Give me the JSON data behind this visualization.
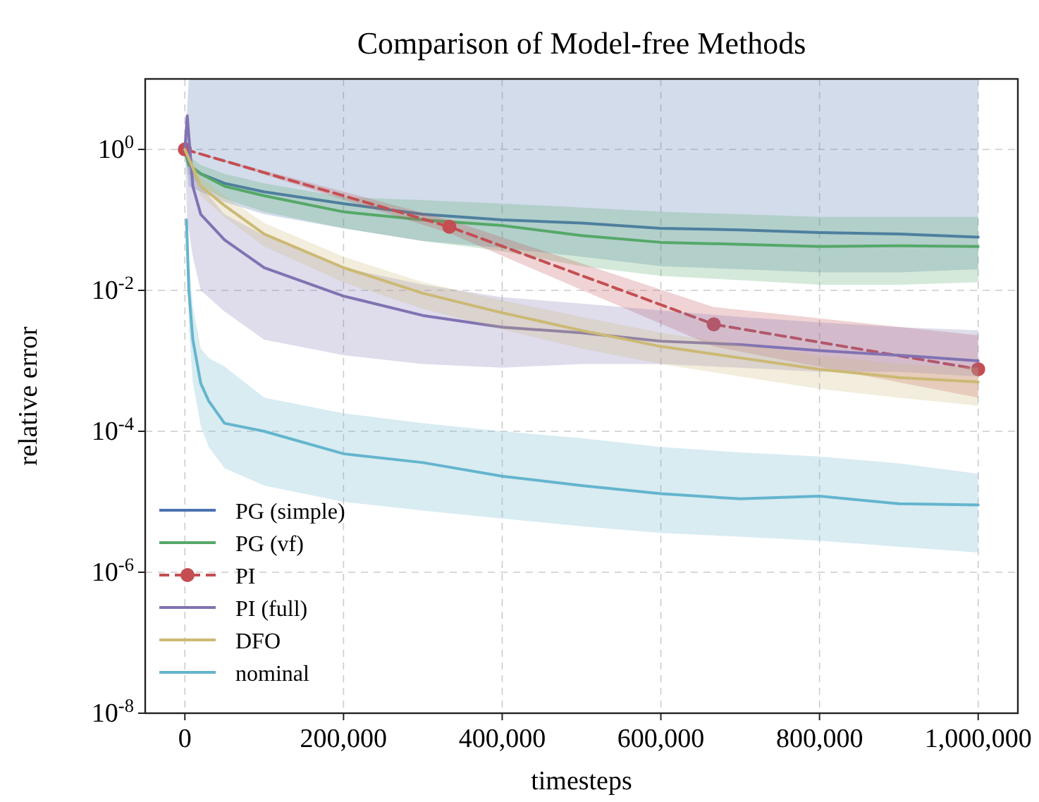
{
  "chart_data": {
    "type": "line",
    "title": "Comparison of Model-free Methods",
    "xlabel": "timesteps",
    "ylabel": "relative error",
    "log": "y",
    "grid": true,
    "legend": "bottom left",
    "xlim": [
      -50000,
      1050000
    ],
    "xticks": [
      {
        "value": 0,
        "label": "0"
      },
      {
        "value": 200000,
        "label": "200,000"
      },
      {
        "value": 400000,
        "label": "400,000"
      },
      {
        "value": 600000,
        "label": "600,000"
      },
      {
        "value": 800000,
        "label": "800,000"
      },
      {
        "value": 1000000,
        "label": "1,000,000"
      }
    ],
    "ylim": [
      1e-08,
      10
    ],
    "yticks": [
      {
        "value": 1e-08,
        "label": "10$^{-8}$"
      },
      {
        "value": 1e-06,
        "label": "10$^{-6}$"
      },
      {
        "value": 0.0001,
        "label": "10$^{-4}$"
      },
      {
        "value": 0.01,
        "label": "10$^{-2}$"
      },
      {
        "value": 1,
        "label": "10$^{0}$"
      }
    ],
    "series": [
      {
        "name": "PG (simple)",
        "color": "#4c72b0",
        "marker": "none",
        "line_style": "solid",
        "x": [
          0,
          5000,
          20000,
          50000,
          100000,
          200000,
          300000,
          400000,
          500000,
          600000,
          700000,
          800000,
          900000,
          1000000
        ],
        "values": [
          1,
          0.6,
          0.45,
          0.33,
          0.25,
          0.17,
          0.12,
          0.1,
          0.09,
          0.076,
          0.072,
          0.066,
          0.063,
          0.057
        ],
        "lower": [
          1,
          0.3,
          0.25,
          0.18,
          0.12,
          0.076,
          0.05,
          0.04,
          0.03,
          0.022,
          0.02,
          0.018,
          0.018,
          0.02
        ],
        "upper": [
          1,
          10,
          10,
          10,
          10,
          10,
          10,
          10,
          10,
          10,
          10,
          10,
          10,
          10
        ]
      },
      {
        "name": "PG (vf)",
        "color": "#55a868",
        "marker": "none",
        "line_style": "solid",
        "x": [
          0,
          5000,
          20000,
          50000,
          100000,
          200000,
          300000,
          400000,
          500000,
          600000,
          700000,
          800000,
          900000,
          1000000
        ],
        "values": [
          1,
          0.6,
          0.45,
          0.3,
          0.22,
          0.13,
          0.1,
          0.083,
          0.06,
          0.048,
          0.045,
          0.042,
          0.043,
          0.042
        ],
        "lower": [
          1,
          0.45,
          0.3,
          0.2,
          0.13,
          0.076,
          0.05,
          0.036,
          0.022,
          0.016,
          0.014,
          0.012,
          0.012,
          0.013
        ],
        "upper": [
          1,
          0.8,
          0.6,
          0.45,
          0.33,
          0.21,
          0.19,
          0.17,
          0.15,
          0.13,
          0.12,
          0.11,
          0.11,
          0.11
        ]
      },
      {
        "name": "PI",
        "color": "#c44e52",
        "marker": "circle",
        "line_style": "dashed",
        "x": [
          0,
          333333,
          666667,
          1000000
        ],
        "values": [
          1,
          0.08,
          0.0033,
          0.00076
        ],
        "lower": [
          1,
          0.065,
          0.0016,
          0.0003
        ],
        "upper": [
          1,
          0.1,
          0.0058,
          0.0023
        ]
      },
      {
        "name": "PI (full)",
        "color": "#8172b2",
        "marker": "none",
        "line_style": "solid",
        "x": [
          0,
          3000,
          10000,
          20000,
          50000,
          100000,
          200000,
          300000,
          400000,
          500000,
          600000,
          700000,
          800000,
          900000,
          1000000
        ],
        "values": [
          1,
          3,
          0.3,
          0.12,
          0.052,
          0.021,
          0.0083,
          0.0044,
          0.003,
          0.0025,
          0.0019,
          0.0017,
          0.0014,
          0.0012,
          0.001
        ],
        "lower": [
          1,
          0.1,
          0.03,
          0.01,
          0.005,
          0.002,
          0.0012,
          0.0009,
          0.0008,
          0.0009,
          0.0009,
          0.0008,
          0.0007,
          0.0007,
          0.0006
        ],
        "upper": [
          1,
          3,
          0.6,
          0.3,
          0.12,
          0.06,
          0.021,
          0.012,
          0.008,
          0.0065,
          0.0052,
          0.0042,
          0.0035,
          0.003,
          0.0027
        ]
      },
      {
        "name": "DFO",
        "color": "#ccb974",
        "marker": "none",
        "line_style": "solid",
        "x": [
          0,
          20000,
          50000,
          100000,
          200000,
          300000,
          400000,
          500000,
          600000,
          700000,
          800000,
          900000,
          1000000
        ],
        "values": [
          1,
          0.3,
          0.16,
          0.063,
          0.021,
          0.0091,
          0.0048,
          0.0027,
          0.0016,
          0.0011,
          0.00076,
          0.00058,
          0.0005
        ],
        "lower": [
          1,
          0.22,
          0.11,
          0.042,
          0.013,
          0.0055,
          0.0028,
          0.0015,
          0.0009,
          0.0006,
          0.0004,
          0.0003,
          0.00023
        ],
        "upper": [
          1,
          0.4,
          0.22,
          0.09,
          0.03,
          0.013,
          0.0072,
          0.0042,
          0.0025,
          0.0017,
          0.0012,
          0.0009,
          0.0008
        ]
      },
      {
        "name": "nominal",
        "color": "#64b5cd",
        "marker": "none",
        "line_style": "solid",
        "x": [
          2000,
          5000,
          10000,
          20000,
          30000,
          50000,
          100000,
          200000,
          300000,
          400000,
          500000,
          600000,
          700000,
          800000,
          900000,
          1000000
        ],
        "values": [
          0.1,
          0.01,
          0.002,
          0.00048,
          0.00027,
          0.00013,
          0.0001,
          4.8e-05,
          3.6e-05,
          2.3e-05,
          1.7e-05,
          1.3e-05,
          1.1e-05,
          1.2e-05,
          9.4e-06,
          9e-06
        ],
        "lower": [
          0.1,
          0.003,
          0.0005,
          0.00012,
          6e-05,
          3e-05,
          1.7e-05,
          1e-05,
          7.5e-06,
          5.8e-06,
          4.5e-06,
          3.6e-06,
          3.2e-06,
          2.8e-06,
          2.3e-06,
          1.9e-06
        ],
        "upper": [
          0.1,
          0.03,
          0.006,
          0.0015,
          0.0011,
          0.00083,
          0.0003,
          0.00018,
          0.00013,
          0.0001,
          8e-05,
          6e-05,
          5e-05,
          4.4e-05,
          3.5e-05,
          2.5e-05
        ]
      }
    ]
  }
}
